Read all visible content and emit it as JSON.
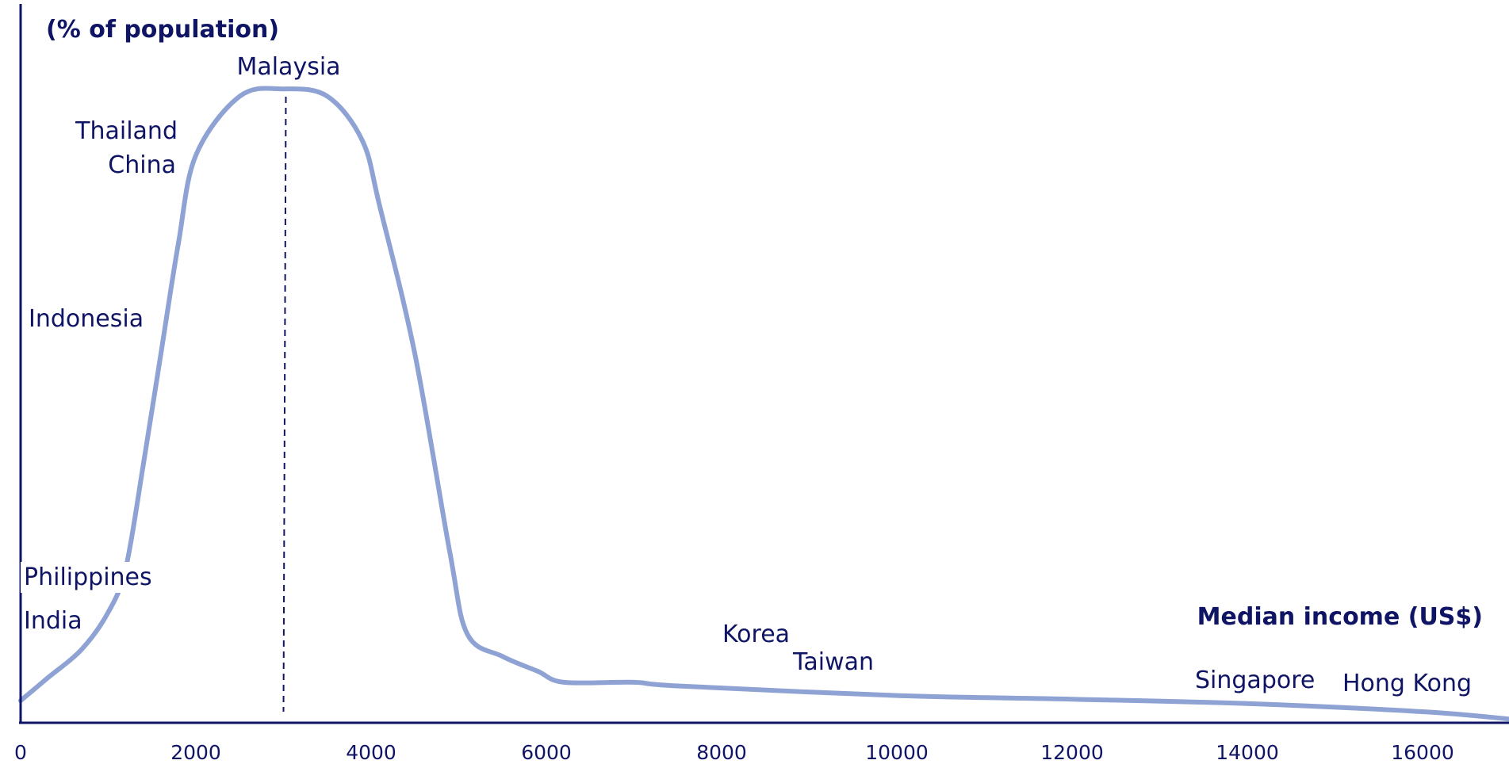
{
  "chart_data": {
    "type": "line",
    "ylabel": "(% of population)",
    "xlabel": "Median income (US$)",
    "x_ticks": [
      "0",
      "2000",
      "4000",
      "6000",
      "8000",
      "10000",
      "12000",
      "14000",
      "16000"
    ],
    "xlim": [
      0,
      17000
    ],
    "grid": false,
    "legend": "none",
    "series": [
      {
        "color": "#8ea2d4",
        "x": [
          0,
          300,
          700,
          1000,
          1200,
          1400,
          1600,
          1800,
          2000,
          2500,
          3000,
          3500,
          3900,
          4100,
          4500,
          4900,
          5100,
          5500,
          5900,
          6200,
          7000,
          7500,
          10000,
          12000,
          14000,
          16000,
          17000
        ],
        "y": [
          3,
          6,
          10,
          15,
          21,
          35,
          50,
          65,
          77,
          85,
          86,
          85,
          79,
          70,
          50,
          23,
          12,
          9,
          7,
          5.5,
          5.5,
          5,
          3.7,
          3.2,
          2.6,
          1.5,
          0.5
        ]
      }
    ],
    "reference_line": {
      "x": 3000,
      "style": "dashed"
    },
    "annotations": [
      {
        "text": "Malaysia",
        "x": 3000
      },
      {
        "text": "Thailand",
        "x": 1800
      },
      {
        "text": "China",
        "x": 1800
      },
      {
        "text": "Indonesia",
        "x": 1600
      },
      {
        "text": "Philippines",
        "x": 1100
      },
      {
        "text": "India",
        "x": 900
      },
      {
        "text": "Korea",
        "x": 8400
      },
      {
        "text": "Taiwan",
        "x": 9300
      },
      {
        "text": "Singapore",
        "x": 14100
      },
      {
        "text": "Hong Kong",
        "x": 15800
      }
    ]
  }
}
